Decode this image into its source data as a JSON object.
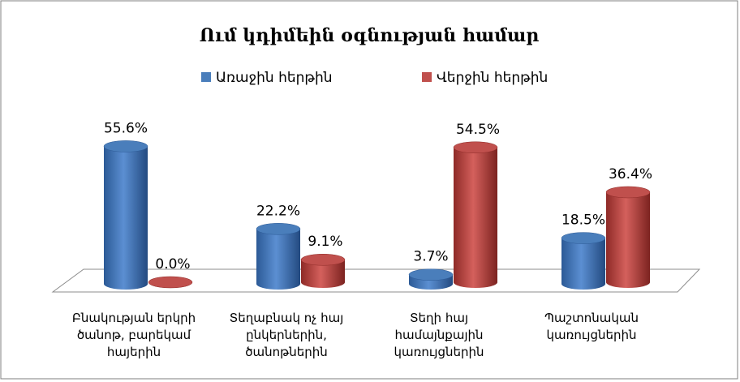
{
  "chart_data": {
    "type": "bar3d",
    "title": "Ում կդիմեին օգնության համար",
    "categories": [
      "Բնակության երկրի ծանոթ, բարեկամ հայերին",
      "Տեղաբնակ ոչ հայ ընկերներին, ծանոթներին",
      "Տեղի հայ համայնքային կառույցներին",
      "Պաշտոնական կառույցներին"
    ],
    "series": [
      {
        "name": "Առաջին հերթին",
        "color": "#4a7ebb",
        "values": [
          55.6,
          22.2,
          3.7,
          18.5
        ],
        "value_labels": [
          "55.6%",
          "22.2%",
          "3.7%",
          "18.5%"
        ]
      },
      {
        "name": "Վերջին հերթին",
        "color": "#c0504d",
        "values": [
          0.0,
          9.1,
          54.5,
          36.4
        ],
        "value_labels": [
          "0.0%",
          "9.1%",
          "54.5%",
          "36.4%"
        ]
      }
    ]
  }
}
